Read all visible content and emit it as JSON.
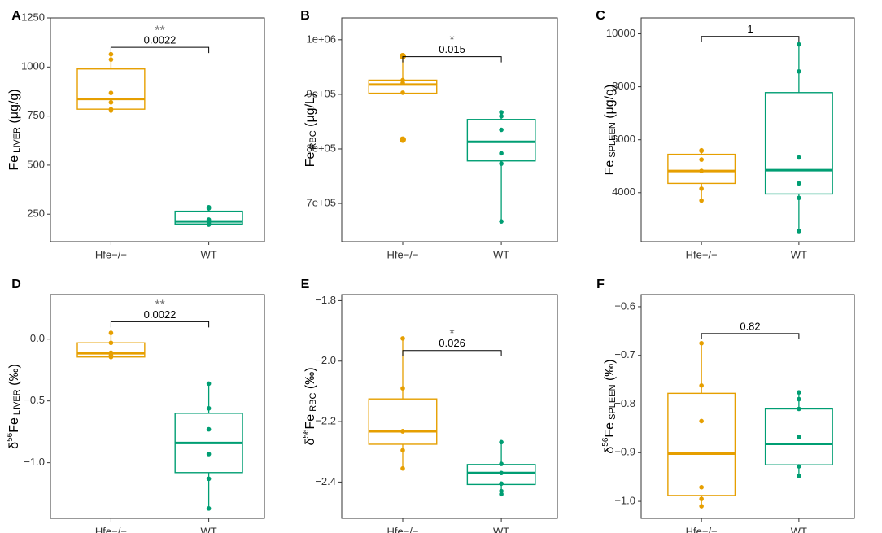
{
  "colors": {
    "hfe": "#e69f00",
    "wt": "#009e73",
    "bracket": "#000000",
    "stars": "#707070",
    "axis": "#333333"
  },
  "chart_data": [
    {
      "type": "box",
      "panel": "A",
      "ylabel_main": "Fe",
      "ylabel_sub": "LIVER",
      "ylabel_unit": " (μg/g)",
      "ylim": [
        110,
        1250
      ],
      "yticks": [
        250,
        500,
        750,
        1000,
        1250
      ],
      "ytick_labels": [
        "250",
        "500",
        "750",
        "1000",
        "1250"
      ],
      "categories": [
        "Hfe−/−",
        "WT"
      ],
      "groups": [
        {
          "name": "Hfe−/−",
          "q1": 785,
          "median": 837,
          "q3": 990,
          "whisker_low": 775,
          "whisker_high": 1065,
          "points": [
            1065,
            1038,
            868,
            820,
            785,
            778
          ]
        },
        {
          "name": "WT",
          "q1": 200,
          "median": 213,
          "q3": 265,
          "whisker_low": 197,
          "whisker_high": 285,
          "points": [
            285,
            280,
            222,
            210,
            200,
            197
          ]
        }
      ],
      "bracket": {
        "y": 1100,
        "pvalue": "0.0022",
        "stars": "**"
      }
    },
    {
      "type": "box",
      "panel": "B",
      "ylabel_main": "Fe",
      "ylabel_sub": "RBC",
      "ylabel_unit": " (μg/L)",
      "ylim": [
        630000,
        1040000
      ],
      "yticks": [
        700000,
        800000,
        900000,
        1000000
      ],
      "ytick_labels": [
        "7e+05",
        "8e+05",
        "9e+05",
        "1e+06"
      ],
      "categories": [
        "Hfe−/−",
        "WT"
      ],
      "groups": [
        {
          "name": "Hfe−/−",
          "q1": 902000,
          "median": 918000,
          "q3": 926000,
          "whisker_low": 902000,
          "whisker_high": 970000,
          "outliers": [
            817000,
            970000
          ],
          "points": [
            970000,
            926000,
            921000,
            903000,
            817000
          ]
        },
        {
          "name": "WT",
          "q1": 778000,
          "median": 813000,
          "q3": 854000,
          "whisker_low": 667000,
          "whisker_high": 867000,
          "points": [
            867000,
            860000,
            835000,
            792000,
            773000,
            667000
          ]
        }
      ],
      "bracket": {
        "y": 969000,
        "pvalue": "0.015",
        "stars": "*"
      }
    },
    {
      "type": "box",
      "panel": "C",
      "ylabel_main": "Fe",
      "ylabel_sub": "SPLEEN",
      "ylabel_unit": " (μg/g)",
      "ylim": [
        2150,
        10600
      ],
      "yticks": [
        4000,
        6000,
        8000,
        10000
      ],
      "ytick_labels": [
        "4000",
        "6000",
        "8000",
        "10000"
      ],
      "categories": [
        "Hfe−/−",
        "WT"
      ],
      "groups": [
        {
          "name": "Hfe−/−",
          "q1": 4350,
          "median": 4820,
          "q3": 5450,
          "whisker_low": 3700,
          "whisker_high": 5600,
          "points": [
            5600,
            5580,
            5250,
            4820,
            4150,
            3700
          ]
        },
        {
          "name": "WT",
          "q1": 3950,
          "median": 4850,
          "q3": 7780,
          "whisker_low": 2550,
          "whisker_high": 9600,
          "points": [
            9600,
            8580,
            5330,
            4350,
            3800,
            2550
          ]
        }
      ],
      "bracket": {
        "y": 9900,
        "pvalue": "1",
        "stars": ""
      }
    },
    {
      "type": "box",
      "panel": "D",
      "ylabel_main": "δ56Fe",
      "ylabel_sub": "LIVER",
      "ylabel_unit": " (‰)",
      "ylim": [
        -1.45,
        0.36
      ],
      "yticks": [
        -1.0,
        -0.5,
        0.0
      ],
      "ytick_labels": [
        "−1.0",
        "−0.5",
        "0.0"
      ],
      "categories": [
        "Hfe−/−",
        "WT"
      ],
      "groups": [
        {
          "name": "Hfe−/−",
          "q1": -0.145,
          "median": -0.115,
          "q3": -0.03,
          "whisker_low": -0.145,
          "whisker_high": 0.05,
          "points": [
            0.05,
            -0.03,
            -0.11,
            -0.13,
            -0.14,
            -0.145
          ]
        },
        {
          "name": "WT",
          "q1": -1.08,
          "median": -0.84,
          "q3": -0.6,
          "whisker_low": -1.37,
          "whisker_high": -0.36,
          "points": [
            -0.36,
            -0.56,
            -0.73,
            -0.93,
            -1.13,
            -1.37
          ]
        }
      ],
      "bracket": {
        "y": 0.14,
        "pvalue": "0.0022",
        "stars": "**"
      }
    },
    {
      "type": "box",
      "panel": "E",
      "ylabel_main": "δ56Fe",
      "ylabel_sub": "RBC",
      "ylabel_unit": " (‰)",
      "ylim": [
        -2.52,
        -1.78
      ],
      "yticks": [
        -2.4,
        -2.2,
        -2.0,
        -1.8
      ],
      "ytick_labels": [
        "−2.4",
        "−2.2",
        "−2.0",
        "−1.8"
      ],
      "categories": [
        "Hfe−/−",
        "WT"
      ],
      "groups": [
        {
          "name": "Hfe−/−",
          "q1": -2.275,
          "median": -2.232,
          "q3": -2.125,
          "whisker_low": -2.355,
          "whisker_high": -1.925,
          "points": [
            -1.925,
            -2.09,
            -2.232,
            -2.232,
            -2.295,
            -2.355
          ]
        },
        {
          "name": "WT",
          "q1": -2.408,
          "median": -2.37,
          "q3": -2.342,
          "whisker_low": -2.44,
          "whisker_high": -2.268,
          "points": [
            -2.268,
            -2.34,
            -2.37,
            -2.405,
            -2.43,
            -2.44
          ]
        }
      ],
      "bracket": {
        "y": -1.965,
        "pvalue": "0.026",
        "stars": "*"
      }
    },
    {
      "type": "box",
      "panel": "F",
      "ylabel_main": "δ56Fe",
      "ylabel_sub": "SPLEEN",
      "ylabel_unit": " (‰)",
      "ylim": [
        -1.035,
        -0.575
      ],
      "yticks": [
        -1.0,
        -0.9,
        -0.8,
        -0.7,
        -0.6
      ],
      "ytick_labels": [
        "−1.0",
        "−0.9",
        "−0.8",
        "−0.7",
        "−0.6"
      ],
      "categories": [
        "Hfe−/−",
        "WT"
      ],
      "groups": [
        {
          "name": "Hfe−/−",
          "q1": -0.988,
          "median": -0.902,
          "q3": -0.778,
          "whisker_low": -1.01,
          "whisker_high": -0.675,
          "points": [
            -0.675,
            -0.762,
            -0.835,
            -0.971,
            -0.995,
            -1.01
          ]
        },
        {
          "name": "WT",
          "q1": -0.925,
          "median": -0.882,
          "q3": -0.81,
          "whisker_low": -0.948,
          "whisker_high": -0.776,
          "points": [
            -0.776,
            -0.79,
            -0.81,
            -0.868,
            -0.928,
            -0.948
          ]
        }
      ],
      "bracket": {
        "y": -0.655,
        "pvalue": "0.82",
        "stars": ""
      }
    }
  ]
}
